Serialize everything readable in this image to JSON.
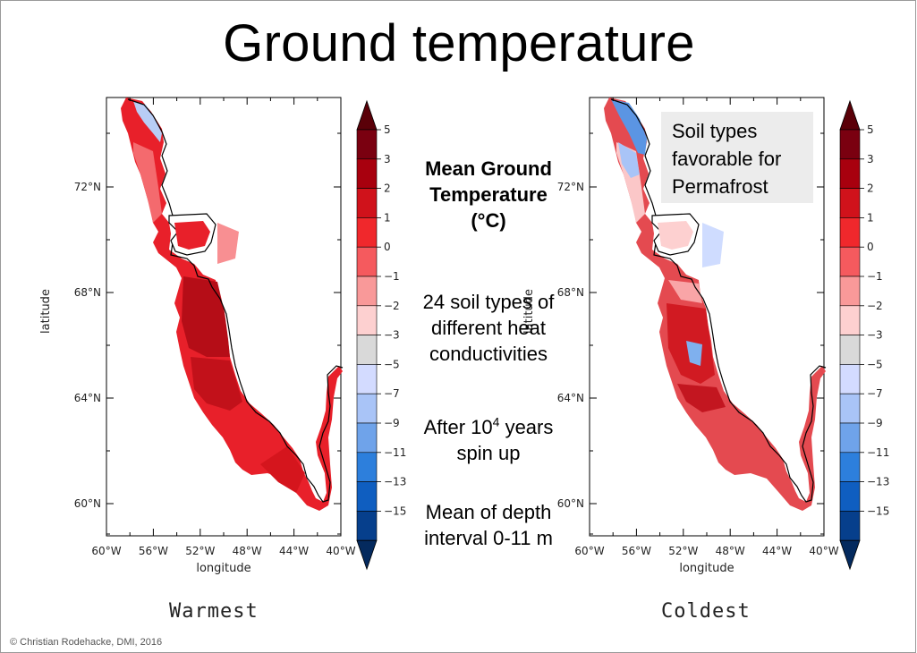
{
  "title": "Ground temperature",
  "footer": "© Christian Rodehacke,  DMI, 2016",
  "center": {
    "legend_title": "Mean Ground Temperature (°C)",
    "legend_title_line1": "Mean Ground",
    "legend_title_line2": "Temperature",
    "legend_title_line3": "(°C)",
    "note1_line1": "24 soil types of",
    "note1_line2": "different heat",
    "note1_line3": "conductivities",
    "note2_line1_a": "After 10",
    "note2_line1_sup": "4",
    "note2_line1_b": " years",
    "note2_line2": "spin up",
    "note3_line1": "Mean of depth",
    "note3_line2": "interval 0-11 m"
  },
  "permafrost_box": {
    "line1": "Soil types",
    "line2": "favorable for",
    "line3": "Permafrost"
  },
  "colorbar": {
    "labels": [
      "5",
      "3",
      "2",
      "1",
      "0",
      "−1",
      "−2",
      "−3",
      "−5",
      "−7",
      "−9",
      "−11",
      "−13",
      "−15"
    ],
    "colors": [
      "#7a0010",
      "#a8000e",
      "#d0121b",
      "#f0282c",
      "#f55a5e",
      "#f99999",
      "#fdd0d0",
      "#d9d9d9",
      "#d3dbff",
      "#a9c4f7",
      "#6fa3ea",
      "#2d7fdc",
      "#0f5ec0",
      "#063f8c"
    ],
    "top_arrow_color": "#5a0008",
    "bottom_arrow_color": "#042a5e"
  },
  "axes": {
    "xticks": [
      "60°W",
      "56°W",
      "52°W",
      "48°W",
      "44°W",
      "40°W"
    ],
    "yticks": [
      "72°N",
      "68°N",
      "64°N",
      "60°N"
    ],
    "xlabel": "longitude",
    "ylabel": "latitude"
  },
  "maps": [
    {
      "caption": "Warmest"
    },
    {
      "caption": "Coldest"
    }
  ]
}
